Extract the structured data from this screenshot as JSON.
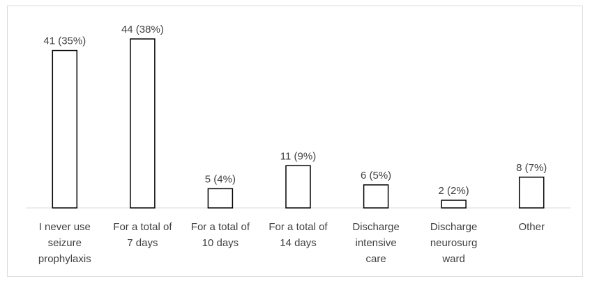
{
  "chart_data": {
    "type": "bar",
    "title": "",
    "xlabel": "",
    "ylabel": "",
    "ylim": [
      0,
      46
    ],
    "grid": false,
    "legend": "none",
    "categories": [
      [
        "I never use",
        "seizure",
        "prophylaxis"
      ],
      [
        "For a total of",
        "7 days"
      ],
      [
        "For a total of",
        "10 days"
      ],
      [
        "For a total of",
        "14 days"
      ],
      [
        "Discharge",
        "intensive",
        "care"
      ],
      [
        "Discharge",
        "neurosurg",
        "ward"
      ],
      [
        "Other"
      ]
    ],
    "values": [
      41,
      44,
      5,
      11,
      6,
      2,
      8
    ],
    "data_labels": [
      "41 (35%)",
      "44 (38%)",
      "5 (4%)",
      "11 (9%)",
      "6 (5%)",
      "2 (2%)",
      "8 (7%)"
    ],
    "colors": {
      "bar_fill": "#ffffff",
      "bar_stroke": "#000000",
      "axis": "#d9d9d9",
      "text": "#404040"
    }
  }
}
